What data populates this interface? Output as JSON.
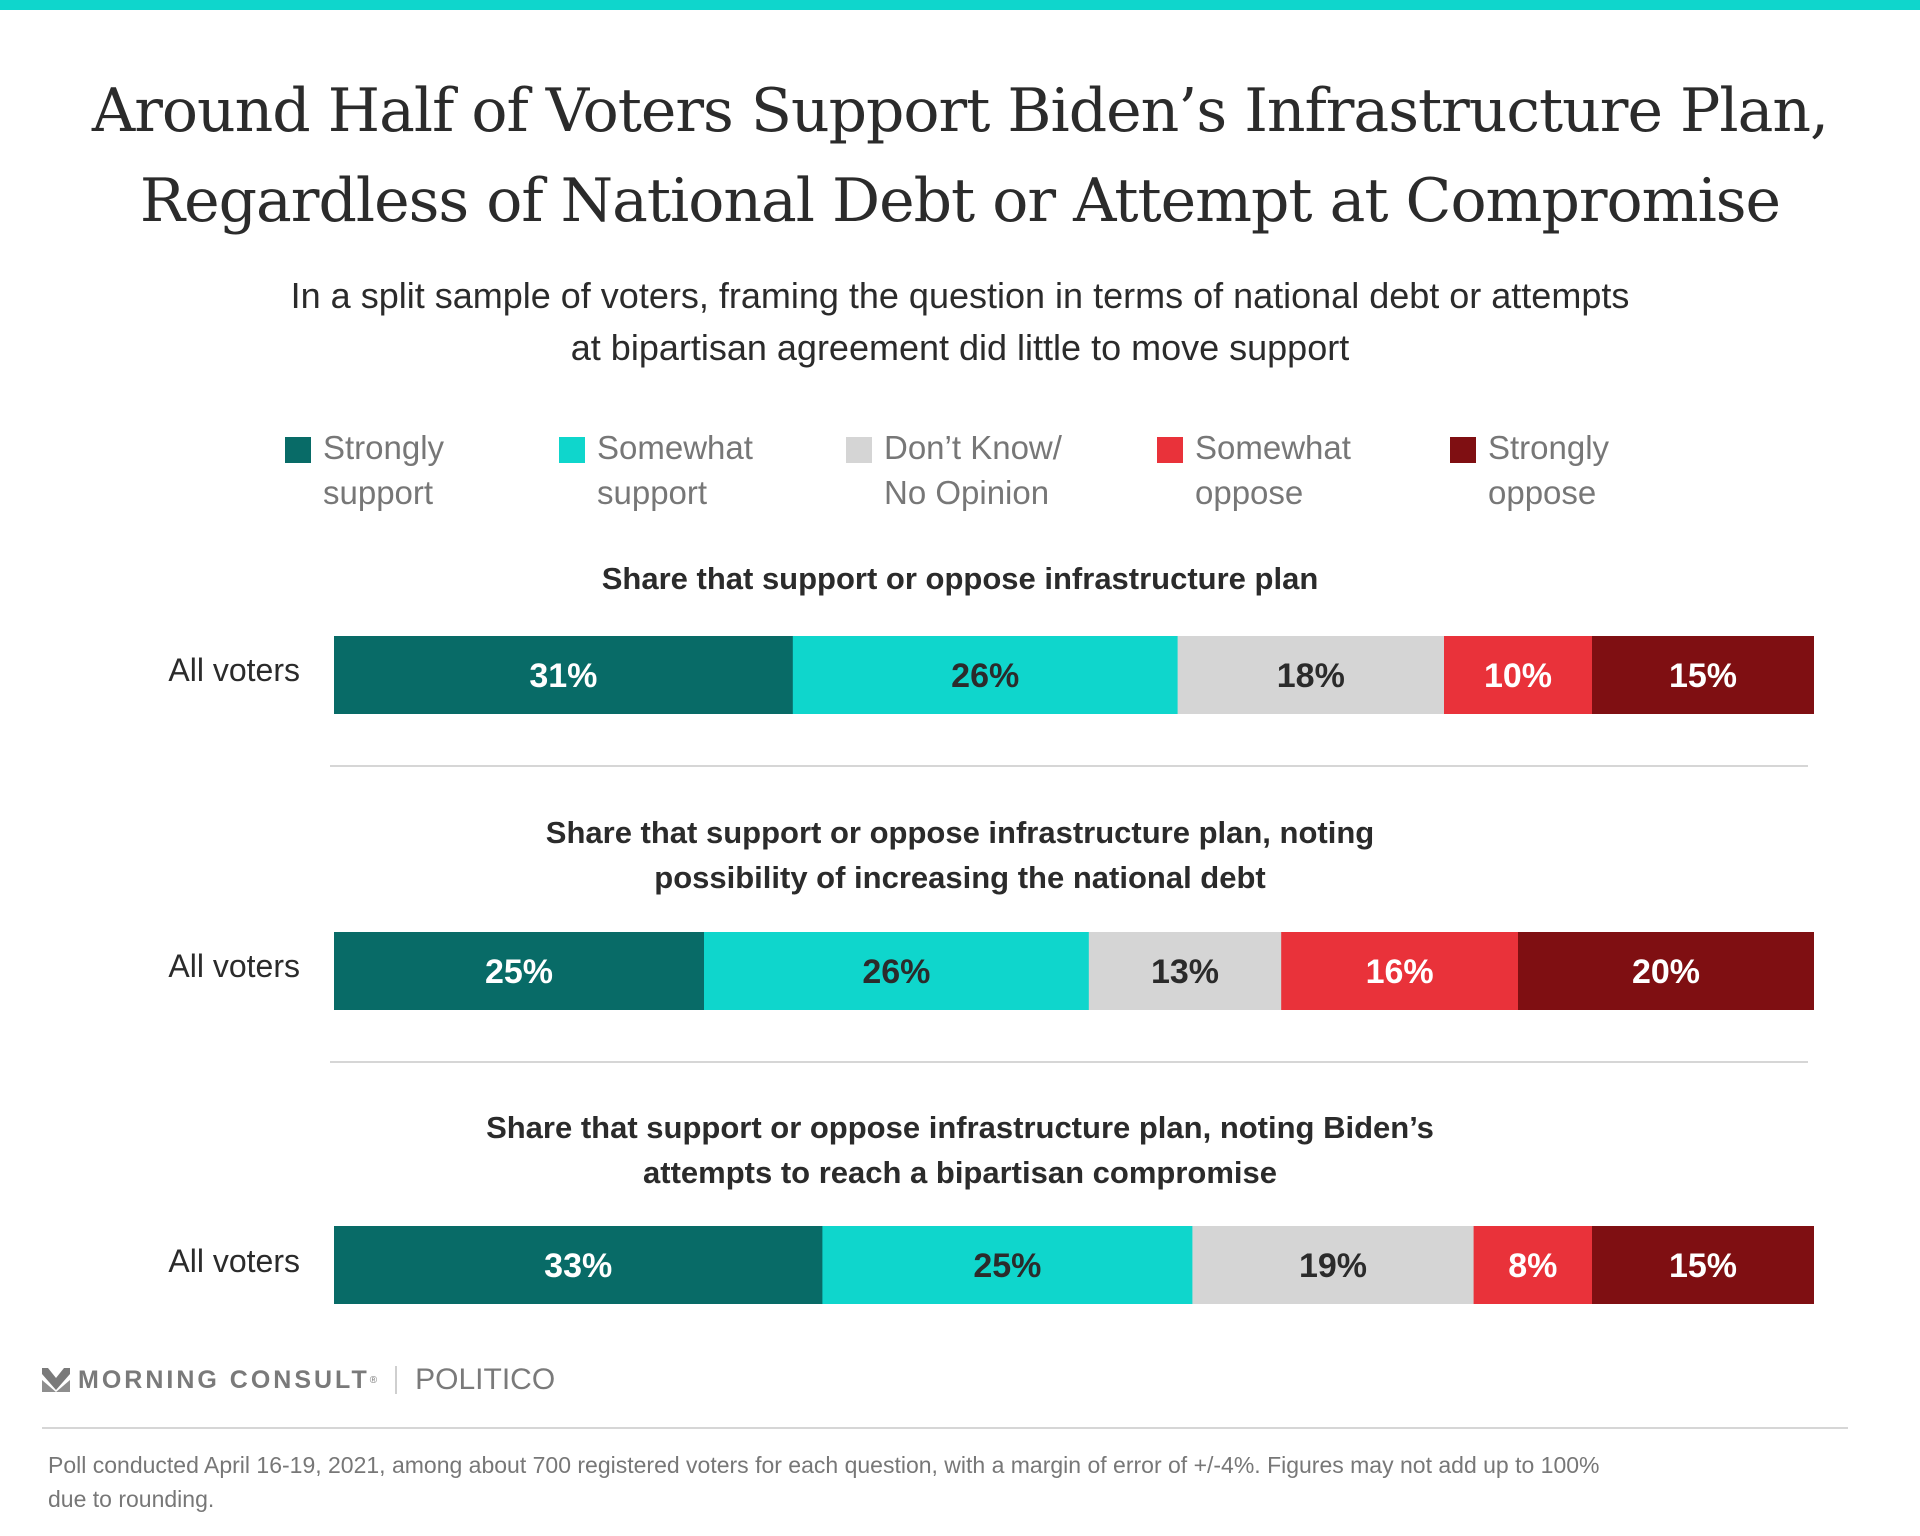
{
  "header": {
    "title_line1": "Around Half of Voters Support Biden’s Infrastructure Plan,",
    "title_line2": "Regardless of National Debt or Attempt at Compromise",
    "subtitle_line1": "In a split sample of voters, framing the question in terms of national debt or attempts",
    "subtitle_line2": "at bipartisan agreement did little to move support"
  },
  "legend": [
    {
      "line1": "Strongly",
      "line2": "support",
      "color": "#086b67"
    },
    {
      "line1": "Somewhat",
      "line2": "support",
      "color": "#0fd6cc"
    },
    {
      "line1": "Don’t Know/",
      "line2": "No Opinion",
      "color": "#d5d5d5"
    },
    {
      "line1": "Somewhat",
      "line2": "oppose",
      "color": "#e9323a"
    },
    {
      "line1": "Strongly",
      "line2": "oppose",
      "color": "#7f0f12"
    }
  ],
  "chart_data": {
    "type": "bar",
    "orientation": "horizontal",
    "stacked": true,
    "normalized": true,
    "categories": [
      "Strongly support",
      "Somewhat support",
      "Don’t Know/No Opinion",
      "Somewhat oppose",
      "Strongly oppose"
    ],
    "colors": [
      "#086b67",
      "#0fd6cc",
      "#d5d5d5",
      "#e9323a",
      "#7f0f12"
    ],
    "label_colors": [
      "#ffffff",
      "#2b2b2b",
      "#2b2b2b",
      "#ffffff",
      "#ffffff"
    ],
    "legend_position": "top",
    "panels": [
      {
        "title_lines": [
          "Share that support or oppose infrastructure plan"
        ],
        "row_label": "All voters",
        "values": [
          31,
          26,
          18,
          10,
          15
        ]
      },
      {
        "title_lines": [
          "Share that support or oppose infrastructure plan, noting",
          "possibility of increasing the national debt"
        ],
        "row_label": "All voters",
        "values": [
          25,
          26,
          13,
          16,
          20
        ]
      },
      {
        "title_lines": [
          "Share that support or oppose infrastructure plan, noting Biden’s",
          "attempts to reach a bipartisan compromise"
        ],
        "row_label": "All voters",
        "values": [
          33,
          25,
          19,
          8,
          15
        ]
      }
    ],
    "value_suffix": "%"
  },
  "footer": {
    "brand1": "MORNING CONSULT",
    "brand1_mark": "®",
    "brand2": "POLITICO",
    "note_line1": "Poll conducted April 16-19, 2021, among about 700 registered voters for each question, with a margin of error of +/-4%. Figures may not add up to 100%",
    "note_line2": "due to rounding."
  }
}
